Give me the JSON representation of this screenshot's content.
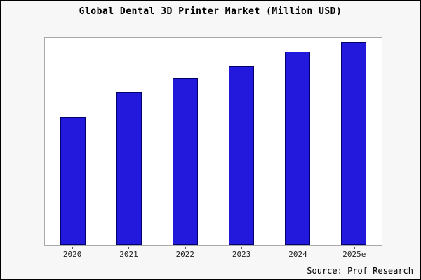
{
  "chart_data": {
    "type": "bar",
    "title": "Global Dental 3D Printer Market (Million USD)",
    "categories": [
      "2020",
      "2021",
      "2022",
      "2023",
      "2024",
      "2025e"
    ],
    "values": [
      63,
      75,
      82,
      88,
      95,
      100
    ],
    "xlabel": "",
    "ylabel": "",
    "ylim": [
      0,
      102
    ],
    "grid": false,
    "legend": "none"
  },
  "colors": {
    "bar_fill": "#2219dd",
    "bar_border": "#00006b",
    "plot_background": "#ffffff",
    "page_background": "#f7f7f7",
    "frame_border": "#000000"
  },
  "source": {
    "text": "Source: Prof Research"
  }
}
